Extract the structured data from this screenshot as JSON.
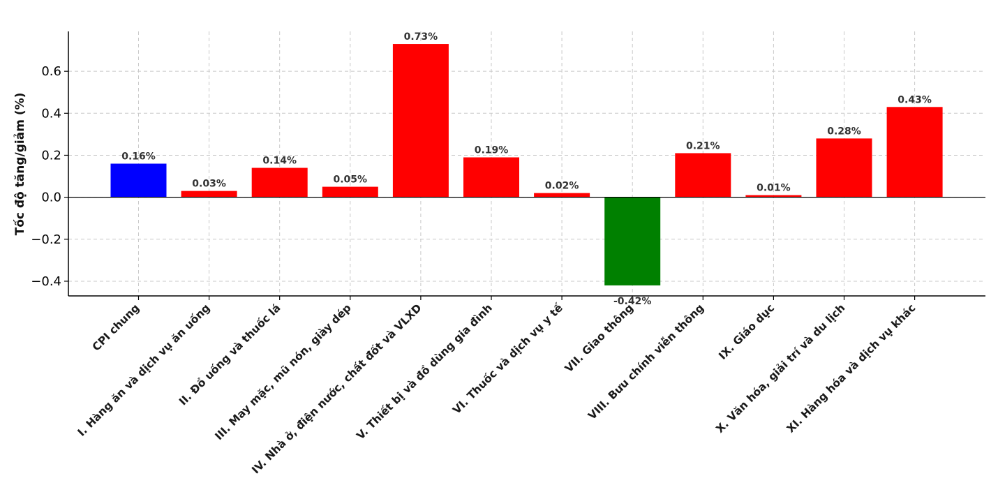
{
  "chart_data": {
    "type": "bar",
    "title": "",
    "xlabel": "",
    "ylabel": "Tốc độ tăng/giảm (%)",
    "ylim": [
      -0.47,
      0.79
    ],
    "yticks": [
      -0.4,
      -0.2,
      0.0,
      0.2,
      0.4,
      0.6
    ],
    "ytick_labels": [
      "−0.4",
      "−0.2",
      "0.0",
      "0.2",
      "0.4",
      "0.6"
    ],
    "grid": true,
    "categories": [
      "CPI chung",
      "I. Hàng ăn và dịch vụ ăn uống",
      "II. Đồ uống và thuốc lá",
      "III. May mặc, mũ nón, giày dép",
      "IV. Nhà ở, điện nước, chất đốt và VLXD",
      "V. Thiết bị và đồ dùng gia đình",
      "VI. Thuốc và dịch vụ y tế",
      "VII. Giao thông",
      "VIII. Bưu chính viễn thông",
      "IX. Giáo dục",
      "X. Văn hóa, giải trí và du lịch",
      "XI. Hàng hóa và dịch vụ khác"
    ],
    "values": [
      0.16,
      0.03,
      0.14,
      0.05,
      0.73,
      0.19,
      0.02,
      -0.42,
      0.21,
      0.01,
      0.28,
      0.43
    ],
    "value_labels": [
      "0.16%",
      "0.03%",
      "0.14%",
      "0.05%",
      "0.73%",
      "0.19%",
      "0.02%",
      "-0.42%",
      "0.21%",
      "0.01%",
      "0.28%",
      "0.43%"
    ],
    "bar_colors": [
      "#0000ff",
      "#ff0000",
      "#ff0000",
      "#ff0000",
      "#ff0000",
      "#ff0000",
      "#ff0000",
      "#008000",
      "#ff0000",
      "#ff0000",
      "#ff0000",
      "#ff0000"
    ]
  }
}
